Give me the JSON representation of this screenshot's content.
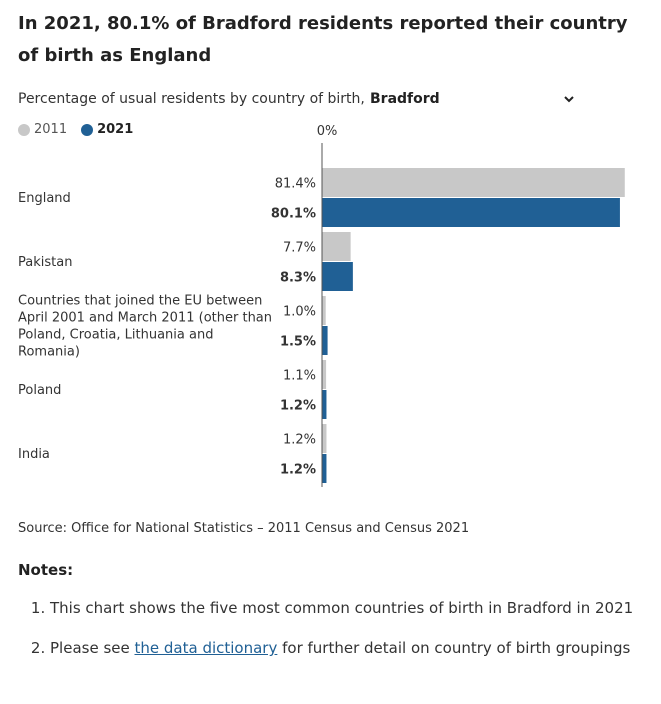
{
  "title": "In 2021, 80.1% of Bradford residents reported their country of birth as England",
  "subtitle": "Percentage of usual residents by country of birth,",
  "select": {
    "value": "Bradford",
    "icon": "chevron-down-icon"
  },
  "colors": {
    "s2011": "#c8c8c8",
    "s2021": "#206095",
    "axis": "#555555"
  },
  "chart_data": {
    "type": "bar",
    "orientation": "horizontal",
    "axis_label": "0%",
    "xlim": [
      0,
      82
    ],
    "categories": [
      "England",
      "Pakistan",
      "Countries that joined the EU between April 2001 and March 2011 (other than Poland, Croatia, Lithuania and Romania)",
      "Poland",
      "India"
    ],
    "category_lines": [
      [
        "England"
      ],
      [
        "Pakistan"
      ],
      [
        "Countries that joined the EU between",
        "April 2001 and March 2011 (other than",
        "Poland, Croatia, Lithuania and",
        "Romania)"
      ],
      [
        "Poland"
      ],
      [
        "India"
      ]
    ],
    "series": [
      {
        "name": "2011",
        "values": [
          81.4,
          7.7,
          1.0,
          1.1,
          1.2
        ],
        "labels": [
          "81.4%",
          "7.7%",
          "1.0%",
          "1.1%",
          "1.2%"
        ]
      },
      {
        "name": "2021",
        "values": [
          80.1,
          8.3,
          1.5,
          1.2,
          1.2
        ],
        "labels": [
          "80.1%",
          "8.3%",
          "1.5%",
          "1.2%",
          "1.2%"
        ]
      }
    ],
    "legend": "top-left",
    "grid": false
  },
  "source": "Source: Office for National Statistics – 2011 Census and Census 2021",
  "notes_title": "Notes:",
  "notes": {
    "item1": "This chart shows the five most common countries of birth in Bradford in 2021",
    "item2_before": "Please see ",
    "item2_link": "the data dictionary",
    "item2_after": " for further detail on country of birth groupings"
  }
}
